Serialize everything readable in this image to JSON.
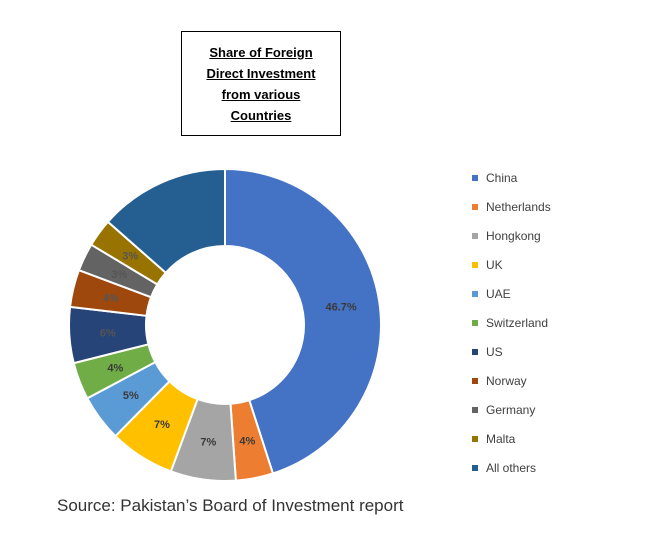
{
  "chart_data": {
    "type": "pie",
    "donut": true,
    "title": "Share of Foreign Direct Investment from various Countries",
    "source": "Source: Pakistan’s Board of Investment report",
    "legend_position": "right",
    "slices": [
      {
        "name": "China",
        "value": 46.7,
        "label": "46.7%",
        "color": "#4472C4",
        "label_color": "#3a3a3a"
      },
      {
        "name": "Netherlands",
        "value": 4,
        "label": "4%",
        "color": "#ED7D31",
        "label_color": "#3a3a3a"
      },
      {
        "name": "Hongkong",
        "value": 7,
        "label": "7%",
        "color": "#A5A5A5",
        "label_color": "#3a3a3a"
      },
      {
        "name": "UK",
        "value": 7,
        "label": "7%",
        "color": "#FFC000",
        "label_color": "#3a3a3a"
      },
      {
        "name": "UAE",
        "value": 5,
        "label": "5%",
        "color": "#5B9BD5",
        "label_color": "#3a3a3a"
      },
      {
        "name": "Switzerland",
        "value": 4,
        "label": "4%",
        "color": "#70AD47",
        "label_color": "#3a3a3a"
      },
      {
        "name": "US",
        "value": 6,
        "label": "6%",
        "color": "#264478",
        "label_color": "#555555"
      },
      {
        "name": "Norway",
        "value": 4,
        "label": "4%",
        "color": "#9E480E",
        "label_color": "#555555"
      },
      {
        "name": "Germany",
        "value": 3,
        "label": "3%",
        "color": "#636363",
        "label_color": "#555555"
      },
      {
        "name": "Malta",
        "value": 3,
        "label": "3%",
        "color": "#997300",
        "label_color": "#555555"
      },
      {
        "name": "All others",
        "value": 14,
        "label": "",
        "color": "#255E91",
        "label_color": "#555555"
      }
    ]
  }
}
